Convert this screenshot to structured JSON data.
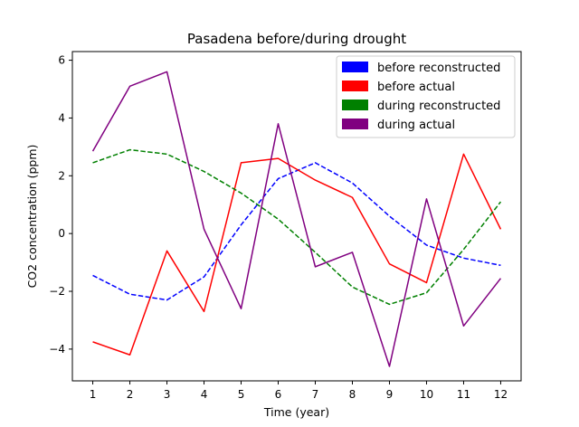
{
  "chart_data": {
    "type": "line",
    "title": "Pasadena before/during drought",
    "xlabel": "Time (year)",
    "ylabel": "CO2 concentration (ppm)",
    "x": [
      1,
      2,
      3,
      4,
      5,
      6,
      7,
      8,
      9,
      10,
      11,
      12
    ],
    "xlim": [
      0.45,
      12.55
    ],
    "ylim": [
      -5.1,
      6.3
    ],
    "yticks": [
      -4,
      -2,
      0,
      2,
      4,
      6
    ],
    "grid": false,
    "legend_position": "top-right",
    "series": [
      {
        "name": "before reconstructed",
        "color": "#0000ff",
        "style": "dashed",
        "values": [
          -1.45,
          -2.1,
          -2.3,
          -1.5,
          0.3,
          1.9,
          2.45,
          1.75,
          0.6,
          -0.4,
          -0.85,
          -1.1
        ]
      },
      {
        "name": "before actual",
        "color": "#ff0000",
        "style": "solid",
        "values": [
          -3.75,
          -4.2,
          -0.6,
          -2.7,
          2.45,
          2.6,
          1.85,
          1.25,
          -1.05,
          -1.7,
          2.75,
          0.15
        ]
      },
      {
        "name": "during reconstructed",
        "color": "#008000",
        "style": "dashed",
        "values": [
          2.45,
          2.9,
          2.75,
          2.15,
          1.4,
          0.5,
          -0.65,
          -1.85,
          -2.45,
          -2.05,
          -0.55,
          1.1
        ]
      },
      {
        "name": "during actual",
        "color": "#800080",
        "style": "solid",
        "values": [
          2.85,
          5.1,
          5.6,
          0.15,
          -2.6,
          3.8,
          -1.15,
          -0.65,
          -4.6,
          1.2,
          -3.2,
          -1.55
        ]
      }
    ]
  }
}
